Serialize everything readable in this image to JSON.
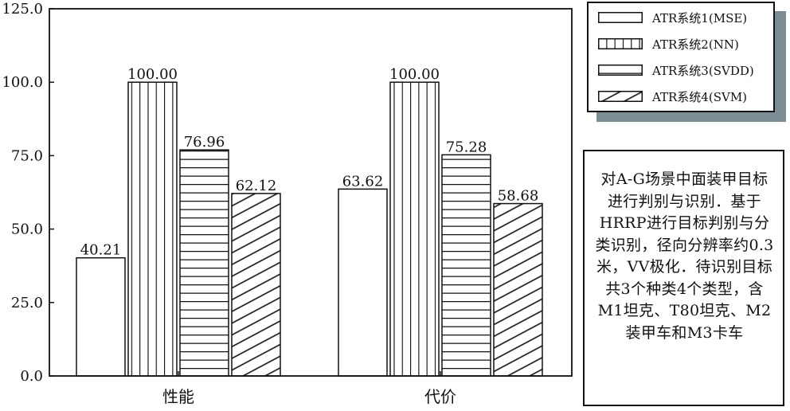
{
  "chart_data": {
    "type": "bar",
    "categories": [
      "性能",
      "代价"
    ],
    "series": [
      {
        "name": "ATR系统1(MSE)",
        "values": [
          40.21,
          63.62
        ],
        "pattern": "plain"
      },
      {
        "name": "ATR系统2(NN)",
        "values": [
          100.0,
          100.0
        ],
        "pattern": "vertical"
      },
      {
        "name": "ATR系统3(SVDD)",
        "values": [
          76.96,
          75.28
        ],
        "pattern": "horizontal"
      },
      {
        "name": "ATR系统4(SVM)",
        "values": [
          62.12,
          58.68
        ],
        "pattern": "diagonal"
      }
    ],
    "value_labels": [
      [
        "40.21",
        "63.62"
      ],
      [
        "100.00",
        "100.00"
      ],
      [
        "76.96",
        "75.28"
      ],
      [
        "62.12",
        "58.68"
      ]
    ],
    "ylim": [
      0,
      125
    ],
    "yticks": [
      0,
      25,
      50,
      75,
      100,
      125
    ],
    "ytick_labels": [
      "0.0",
      "25.0",
      "50.0",
      "75.0",
      "100.0",
      "125.0"
    ],
    "title": "",
    "xlabel": "",
    "ylabel": "",
    "grid": false,
    "legend_position": "outside-right-top"
  },
  "annotation": "对A-G场景中面装甲目标进行判别与识别．基于HRRP进行目标判别与分类识别，径向分辨率约0.3米，VV极化．待识别目标共3个种类4个类型，含M1坦克、T80坦克、M2装甲车和M3卡车",
  "colors": {
    "stroke": "#111111",
    "fill": "#ffffff",
    "legend_shadow": "#7d8b94"
  }
}
